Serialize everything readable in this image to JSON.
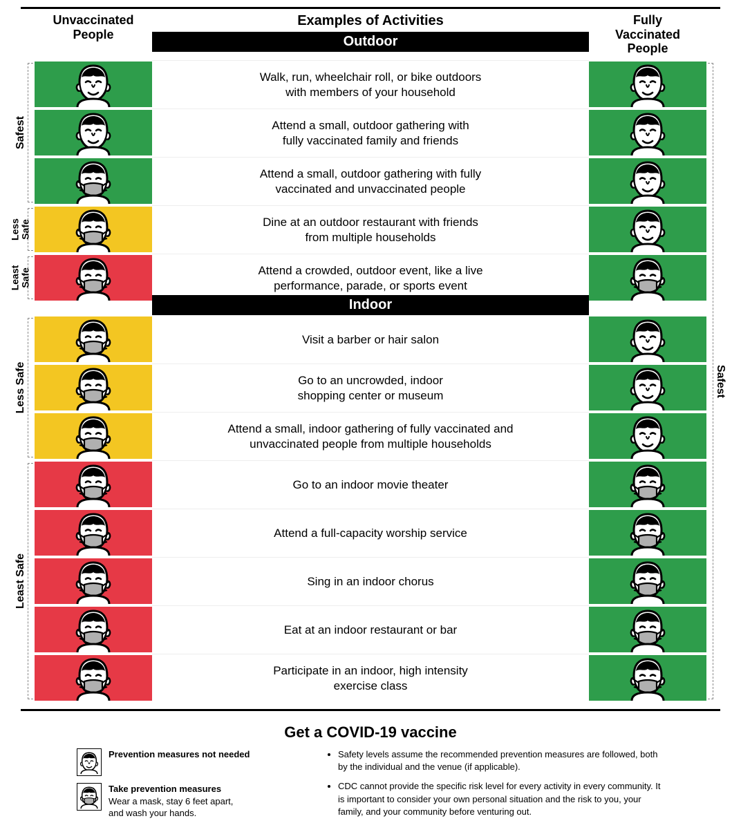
{
  "colors": {
    "green": "#2e9d4b",
    "yellow": "#f3c622",
    "red": "#e63946",
    "mask": "#b0b0b0",
    "black": "#000000",
    "white": "#ffffff"
  },
  "headers": {
    "left": "Unvaccinated\nPeople",
    "center": "Examples of Activities",
    "right": "Fully\nVaccinated\nPeople"
  },
  "sections": {
    "outdoor": "Outdoor",
    "indoor": "Indoor"
  },
  "side_labels": {
    "safest": "Safest",
    "less_safe": "Less\nSafe",
    "least_safe": "Least\nSafe",
    "less_safe_single": "Less Safe",
    "least_safe_single": "Least Safe"
  },
  "outdoor_rows": [
    {
      "activity": "Walk, run, wheelchair roll, or bike outdoors\nwith members of your household",
      "left_color": "green",
      "left_mask": false,
      "right_color": "green",
      "right_mask": false
    },
    {
      "activity": "Attend a small, outdoor gathering with\nfully vaccinated family and friends",
      "left_color": "green",
      "left_mask": false,
      "right_color": "green",
      "right_mask": false
    },
    {
      "activity": "Attend a small, outdoor gathering with fully\nvaccinated and unvaccinated people",
      "left_color": "green",
      "left_mask": true,
      "right_color": "green",
      "right_mask": false
    },
    {
      "activity": "Dine at an outdoor restaurant with friends\nfrom multiple households",
      "left_color": "yellow",
      "left_mask": true,
      "right_color": "green",
      "right_mask": false
    },
    {
      "activity": "Attend a crowded, outdoor event, like a live\nperformance, parade, or sports event",
      "left_color": "red",
      "left_mask": true,
      "right_color": "green",
      "right_mask": true
    }
  ],
  "indoor_rows": [
    {
      "activity": "Visit a barber or hair salon",
      "left_color": "yellow",
      "left_mask": true,
      "right_color": "green",
      "right_mask": false
    },
    {
      "activity": "Go to an uncrowded, indoor\nshopping center or museum",
      "left_color": "yellow",
      "left_mask": true,
      "right_color": "green",
      "right_mask": false
    },
    {
      "activity": "Attend a small, indoor gathering of fully vaccinated and\nunvaccinated people from multiple households",
      "left_color": "yellow",
      "left_mask": true,
      "right_color": "green",
      "right_mask": false
    },
    {
      "activity": "Go to an indoor movie theater",
      "left_color": "red",
      "left_mask": true,
      "right_color": "green",
      "right_mask": true
    },
    {
      "activity": "Attend a full-capacity worship service",
      "left_color": "red",
      "left_mask": true,
      "right_color": "green",
      "right_mask": true
    },
    {
      "activity": "Sing in an indoor chorus",
      "left_color": "red",
      "left_mask": true,
      "right_color": "green",
      "right_mask": true
    },
    {
      "activity": "Eat at an indoor restaurant or bar",
      "left_color": "red",
      "left_mask": true,
      "right_color": "green",
      "right_mask": true
    },
    {
      "activity": "Participate in an indoor, high intensity\nexercise class",
      "left_color": "red",
      "left_mask": true,
      "right_color": "green",
      "right_mask": true
    }
  ],
  "footer": {
    "title": "Get a COVID-19 vaccine",
    "legend_nomask_bold": "Prevention measures not needed",
    "legend_mask_bold": "Take prevention measures",
    "legend_mask_sub": "Wear a mask, stay 6 feet apart,\nand wash your hands.",
    "note1": "Safety levels assume the recommended prevention measures are followed, both by the individual and the venue (if applicable).",
    "note2": "CDC cannot provide the specific risk level for every activity in every community. It is important to consider your own personal situation and the risk to you, your family, and your community before venturing out."
  }
}
